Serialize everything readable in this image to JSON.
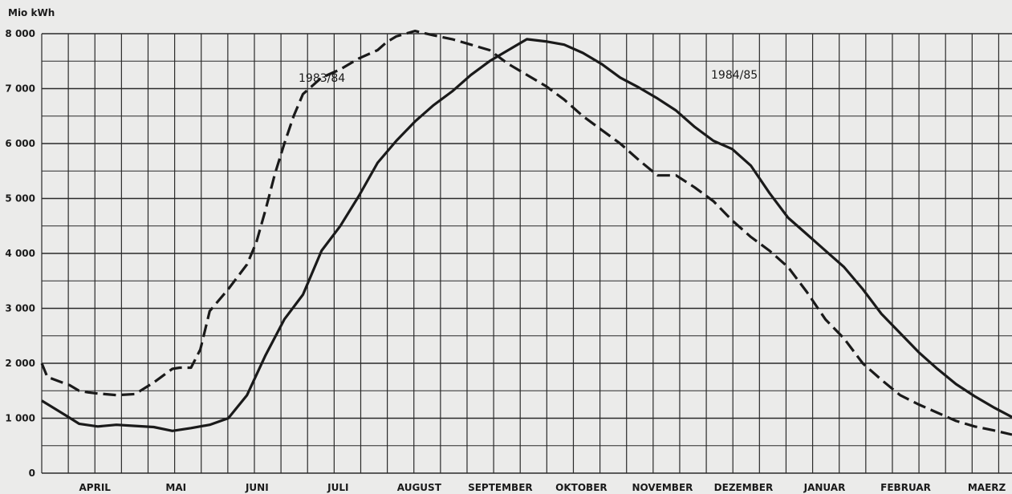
{
  "chart_data": {
    "type": "line",
    "title": "",
    "ylabel": "Mio kWh",
    "xlabel": "",
    "ylim": [
      0,
      8000
    ],
    "yticks": [
      "0",
      "1 000",
      "2 000",
      "3 000",
      "4 000",
      "5 000",
      "6 000",
      "7 000",
      "8 000"
    ],
    "ytick_values": [
      0,
      1000,
      2000,
      3000,
      4000,
      5000,
      6000,
      7000,
      8000
    ],
    "categories": [
      "APRIL",
      "MAI",
      "JUNI",
      "JULI",
      "AUGUST",
      "SEPTEMBER",
      "OKTOBER",
      "NOVEMBER",
      "DEZEMBER",
      "JANUAR",
      "FEBRUAR",
      "MAERZ"
    ],
    "x_unit": "week of hydrological year (April = week 0)",
    "grid": true,
    "series": [
      {
        "name": "1983/84",
        "style": "dashed",
        "color": "#1a1a1a",
        "x": [
          0,
          0.3,
          1.5,
          2,
          2.5,
          3,
          4,
          5,
          6,
          7,
          7.4,
          8,
          8.5,
          9,
          10,
          11,
          11.5,
          12,
          12.5,
          13,
          13.5,
          14,
          15,
          16,
          17,
          18,
          18.5,
          19,
          20,
          21,
          22,
          23,
          24,
          25,
          26,
          27,
          28,
          29,
          30,
          31,
          32,
          33,
          34,
          35,
          36,
          37,
          38,
          39,
          40,
          41,
          42,
          43,
          44,
          45,
          46,
          47,
          48,
          49,
          50,
          51,
          52
        ],
        "y": [
          2000,
          1750,
          1600,
          1500,
          1470,
          1450,
          1420,
          1440,
          1650,
          1900,
          1920,
          1920,
          2250,
          2950,
          3350,
          3800,
          4200,
          4800,
          5450,
          6000,
          6500,
          6900,
          7200,
          7350,
          7550,
          7700,
          7850,
          7950,
          8050,
          7970,
          7900,
          7800,
          7700,
          7450,
          7250,
          7050,
          6800,
          6500,
          6250,
          6000,
          5700,
          5420,
          5420,
          5200,
          4950,
          4600,
          4300,
          4050,
          3750,
          3300,
          2800,
          2450,
          2000,
          1700,
          1420,
          1250,
          1100,
          950,
          850,
          780,
          700
        ]
      },
      {
        "name": "1984/85",
        "style": "solid",
        "color": "#1a1a1a",
        "x": [
          0,
          1.3,
          2,
          3,
          4,
          5,
          6,
          7,
          8,
          9,
          10,
          11,
          12,
          13,
          14,
          15,
          16,
          17,
          18,
          19,
          20,
          21,
          22,
          23,
          24,
          25,
          26,
          27,
          28,
          29,
          30,
          31,
          32,
          33,
          34,
          35,
          36,
          37,
          38,
          39,
          40,
          41,
          42,
          43,
          44,
          45,
          46,
          47,
          48,
          49,
          50,
          51,
          52
        ],
        "y": [
          1320,
          1050,
          900,
          850,
          880,
          860,
          840,
          770,
          820,
          880,
          1000,
          1420,
          2150,
          2800,
          3250,
          4050,
          4500,
          5050,
          5650,
          6050,
          6400,
          6700,
          6950,
          7250,
          7500,
          7700,
          7900,
          7860,
          7800,
          7650,
          7450,
          7200,
          7020,
          6820,
          6600,
          6300,
          6050,
          5900,
          5600,
          5100,
          4650,
          4350,
          4050,
          3750,
          3350,
          2900,
          2550,
          2200,
          1900,
          1620,
          1400,
          1200,
          1020
        ]
      }
    ]
  }
}
